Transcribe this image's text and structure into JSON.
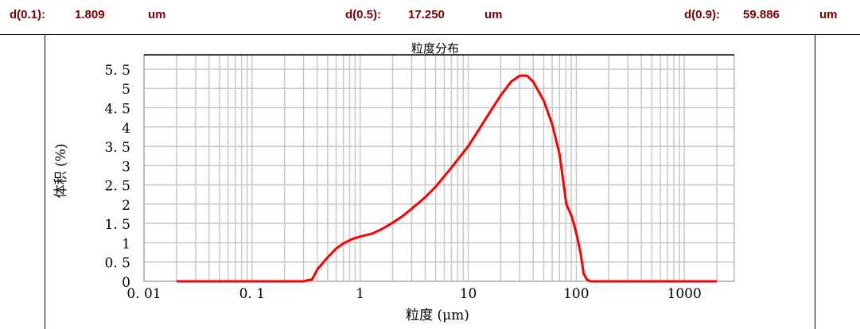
{
  "header": {
    "d10": {
      "label": "d(0.1):",
      "value": "1.809",
      "unit": "um"
    },
    "d50": {
      "label": "d(0.5):",
      "value": "17.250",
      "unit": "um"
    },
    "d90": {
      "label": "d(0.9):",
      "value": "59.886",
      "unit": "um"
    }
  },
  "chart_data": {
    "type": "line",
    "title": "粒度分布",
    "xlabel": "粒度 (μm)",
    "ylabel": "体积 (%)",
    "xscale": "log",
    "xlim": [
      0.01,
      2900
    ],
    "ylim": [
      0,
      5.87
    ],
    "grid": true,
    "line_color": "#ff0000",
    "x_ticks": [
      "0.01",
      "0.1",
      "1",
      "10",
      "100",
      "1000"
    ],
    "y_ticks": [
      "0",
      "0.5",
      "1",
      "1.5",
      "2",
      "2.5",
      "3",
      "3.5",
      "4",
      "4.5",
      "5",
      "5.5"
    ],
    "series": [
      {
        "x": [
          0.02,
          0.3,
          0.33,
          0.36,
          0.4,
          0.5,
          0.6,
          0.7,
          0.85,
          1,
          1.3,
          1.6,
          2,
          2.5,
          3,
          4,
          5,
          7,
          10,
          13,
          16,
          20,
          25,
          30,
          35,
          40,
          50,
          60,
          70,
          81,
          91,
          100,
          110,
          117,
          125,
          135,
          150,
          2000
        ],
        "y": [
          0,
          0,
          0.03,
          0.05,
          0.3,
          0.62,
          0.85,
          0.98,
          1.1,
          1.16,
          1.24,
          1.36,
          1.52,
          1.7,
          1.88,
          2.18,
          2.45,
          2.95,
          3.5,
          4.0,
          4.4,
          4.82,
          5.18,
          5.33,
          5.33,
          5.17,
          4.68,
          4.06,
          3.3,
          2.0,
          1.67,
          1.25,
          0.7,
          0.2,
          0.05,
          0,
          0,
          0
        ]
      }
    ]
  }
}
